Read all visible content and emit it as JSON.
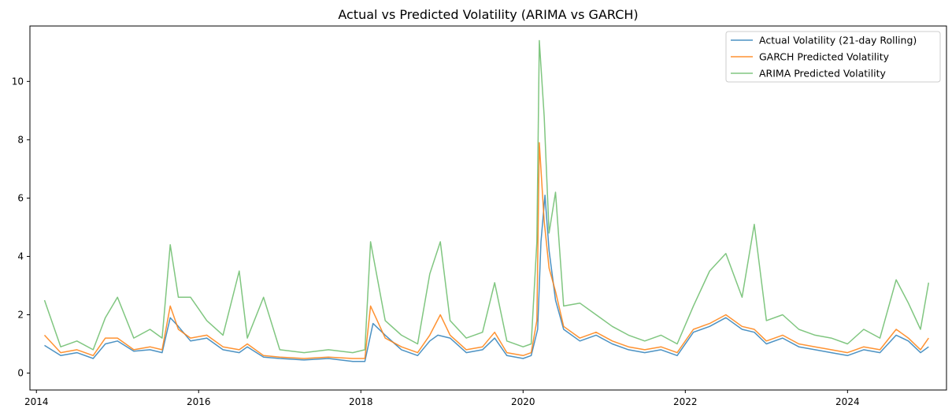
{
  "chart_data": {
    "type": "line",
    "title": "Actual vs Predicted Volatility (ARIMA vs GARCH)",
    "xlabel": "",
    "ylabel": "",
    "xlim": [
      2013.92,
      2025.22
    ],
    "ylim": [
      -0.58,
      11.9
    ],
    "x_ticks": [
      2014,
      2016,
      2018,
      2020,
      2022,
      2024
    ],
    "y_ticks": [
      0,
      2,
      4,
      6,
      8,
      10
    ],
    "grid": false,
    "legend_position": "top-right",
    "series": [
      {
        "name": "Actual Volatility (21-day Rolling)",
        "color": "#1f77b4",
        "opacity": 0.8,
        "x": [
          2014.1,
          2014.3,
          2014.5,
          2014.7,
          2014.85,
          2015.0,
          2015.2,
          2015.4,
          2015.55,
          2015.65,
          2015.75,
          2015.9,
          2016.1,
          2016.3,
          2016.5,
          2016.6,
          2016.8,
          2017.0,
          2017.3,
          2017.6,
          2017.9,
          2018.05,
          2018.15,
          2018.3,
          2018.5,
          2018.7,
          2018.85,
          2018.95,
          2019.1,
          2019.3,
          2019.5,
          2019.65,
          2019.8,
          2020.0,
          2020.1,
          2020.18,
          2020.22,
          2020.27,
          2020.32,
          2020.4,
          2020.5,
          2020.7,
          2020.9,
          2021.1,
          2021.3,
          2021.5,
          2021.7,
          2021.9,
          2022.1,
          2022.3,
          2022.5,
          2022.7,
          2022.85,
          2023.0,
          2023.2,
          2023.4,
          2023.6,
          2023.8,
          2024.0,
          2024.2,
          2024.4,
          2024.6,
          2024.75,
          2024.9,
          2025.0
        ],
        "y": [
          0.95,
          0.6,
          0.7,
          0.5,
          1.0,
          1.1,
          0.75,
          0.8,
          0.7,
          1.9,
          1.6,
          1.1,
          1.2,
          0.8,
          0.7,
          0.9,
          0.55,
          0.5,
          0.45,
          0.5,
          0.4,
          0.4,
          1.7,
          1.3,
          0.8,
          0.6,
          1.1,
          1.3,
          1.2,
          0.7,
          0.8,
          1.2,
          0.6,
          0.5,
          0.6,
          1.5,
          4.5,
          6.1,
          4.2,
          2.5,
          1.5,
          1.1,
          1.3,
          1.0,
          0.8,
          0.7,
          0.8,
          0.6,
          1.4,
          1.6,
          1.9,
          1.5,
          1.4,
          1.0,
          1.2,
          0.9,
          0.8,
          0.7,
          0.6,
          0.8,
          0.7,
          1.3,
          1.1,
          0.7,
          0.9
        ]
      },
      {
        "name": "GARCH Predicted Volatility",
        "color": "#ff7f0e",
        "opacity": 0.85,
        "x": [
          2014.1,
          2014.3,
          2014.5,
          2014.7,
          2014.85,
          2015.0,
          2015.2,
          2015.4,
          2015.55,
          2015.65,
          2015.75,
          2015.9,
          2016.1,
          2016.3,
          2016.5,
          2016.6,
          2016.8,
          2017.0,
          2017.3,
          2017.6,
          2017.9,
          2018.05,
          2018.12,
          2018.3,
          2018.5,
          2018.7,
          2018.85,
          2018.98,
          2019.1,
          2019.3,
          2019.5,
          2019.65,
          2019.8,
          2020.0,
          2020.1,
          2020.17,
          2020.2,
          2020.26,
          2020.32,
          2020.4,
          2020.5,
          2020.7,
          2020.9,
          2021.1,
          2021.3,
          2021.5,
          2021.7,
          2021.9,
          2022.1,
          2022.3,
          2022.5,
          2022.7,
          2022.85,
          2023.0,
          2023.2,
          2023.4,
          2023.6,
          2023.8,
          2024.0,
          2024.2,
          2024.4,
          2024.6,
          2024.75,
          2024.9,
          2025.0
        ],
        "y": [
          1.3,
          0.7,
          0.8,
          0.6,
          1.2,
          1.2,
          0.8,
          0.9,
          0.8,
          2.3,
          1.5,
          1.2,
          1.3,
          0.9,
          0.8,
          1.0,
          0.6,
          0.55,
          0.5,
          0.55,
          0.5,
          0.5,
          2.3,
          1.2,
          0.9,
          0.7,
          1.3,
          2.0,
          1.3,
          0.8,
          0.9,
          1.4,
          0.7,
          0.6,
          0.7,
          1.8,
          7.9,
          5.2,
          3.6,
          2.8,
          1.6,
          1.2,
          1.4,
          1.1,
          0.9,
          0.8,
          0.9,
          0.7,
          1.5,
          1.7,
          2.0,
          1.6,
          1.5,
          1.1,
          1.3,
          1.0,
          0.9,
          0.8,
          0.7,
          0.9,
          0.8,
          1.5,
          1.2,
          0.8,
          1.2
        ]
      },
      {
        "name": "ARIMA Predicted Volatility",
        "color": "#2ca02c",
        "opacity": 0.6,
        "x": [
          2014.1,
          2014.3,
          2014.5,
          2014.7,
          2014.85,
          2015.0,
          2015.2,
          2015.4,
          2015.55,
          2015.65,
          2015.75,
          2015.9,
          2016.1,
          2016.3,
          2016.5,
          2016.6,
          2016.8,
          2017.0,
          2017.3,
          2017.6,
          2017.9,
          2018.05,
          2018.12,
          2018.3,
          2018.5,
          2018.7,
          2018.85,
          2018.98,
          2019.1,
          2019.3,
          2019.5,
          2019.65,
          2019.8,
          2020.0,
          2020.1,
          2020.17,
          2020.2,
          2020.26,
          2020.32,
          2020.4,
          2020.5,
          2020.7,
          2020.9,
          2021.1,
          2021.3,
          2021.5,
          2021.7,
          2021.9,
          2022.1,
          2022.3,
          2022.5,
          2022.7,
          2022.85,
          2023.0,
          2023.2,
          2023.4,
          2023.6,
          2023.8,
          2024.0,
          2024.2,
          2024.4,
          2024.6,
          2024.75,
          2024.9,
          2025.0
        ],
        "y": [
          2.5,
          0.9,
          1.1,
          0.8,
          1.9,
          2.6,
          1.2,
          1.5,
          1.2,
          4.4,
          2.6,
          2.6,
          1.8,
          1.3,
          3.5,
          1.2,
          2.6,
          0.8,
          0.7,
          0.8,
          0.7,
          0.8,
          4.5,
          1.8,
          1.3,
          1.0,
          3.4,
          4.5,
          1.8,
          1.2,
          1.4,
          3.1,
          1.1,
          0.9,
          1.0,
          4.5,
          11.4,
          8.8,
          4.8,
          6.2,
          2.3,
          2.4,
          2.0,
          1.6,
          1.3,
          1.1,
          1.3,
          1.0,
          2.3,
          3.5,
          4.1,
          2.6,
          5.1,
          1.8,
          2.0,
          1.5,
          1.3,
          1.2,
          1.0,
          1.5,
          1.2,
          3.2,
          2.4,
          1.5,
          3.1
        ]
      }
    ]
  }
}
